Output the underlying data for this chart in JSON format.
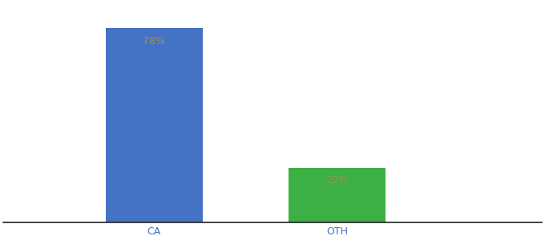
{
  "categories": [
    "CA",
    "OTH"
  ],
  "values": [
    78,
    22
  ],
  "bar_colors": [
    "#4472C4",
    "#3CB043"
  ],
  "labels": [
    "78%",
    "22%"
  ],
  "label_color": "#a09050",
  "label_fontsize": 9,
  "xlabel_fontsize": 9,
  "xlabel_color": "#4472C4",
  "background_color": "#ffffff",
  "ylim": [
    0,
    88
  ],
  "bar_width": 0.18,
  "x_positions": [
    0.28,
    0.62
  ],
  "xlim": [
    0.0,
    1.0
  ],
  "figsize": [
    6.8,
    3.0
  ],
  "dpi": 100
}
